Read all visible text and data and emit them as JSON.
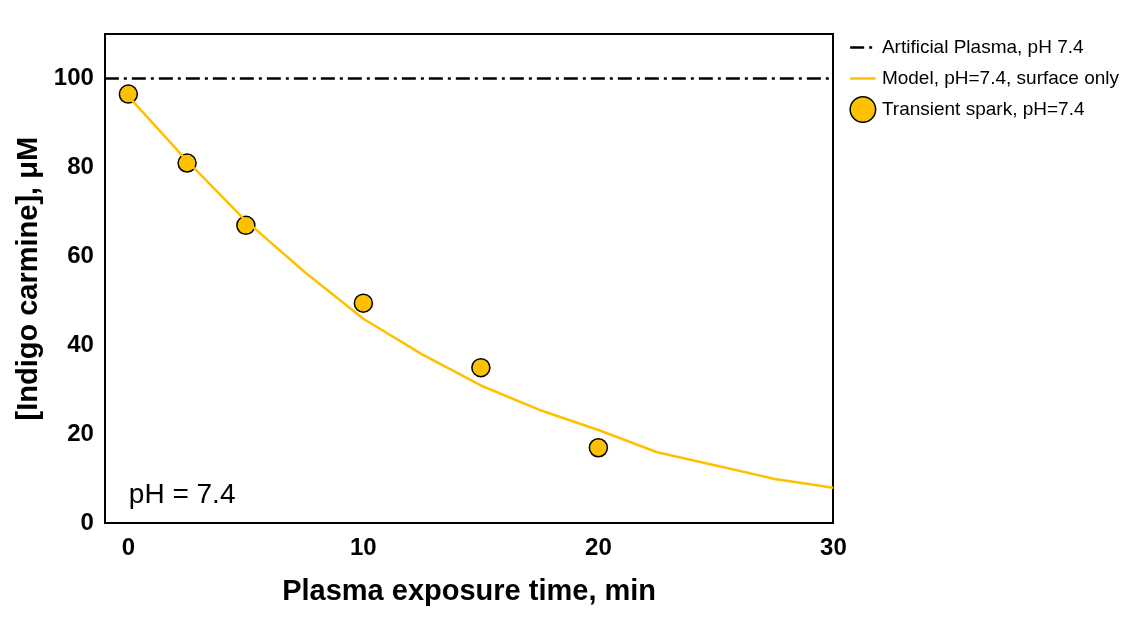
{
  "chart_data": {
    "type": "line",
    "xlabel": "Plasma exposure time, min",
    "ylabel": "[Indigo carmine], μM",
    "xlim": [
      -1,
      30
    ],
    "xticks": [
      0,
      10,
      20,
      30
    ],
    "ylim": [
      0,
      110
    ],
    "yticks": [
      0,
      20,
      40,
      60,
      80,
      100
    ],
    "grid": false,
    "legend": "right",
    "series": [
      {
        "name": "Artificial Plasma, pH 7.4",
        "type": "line",
        "color": "#000000",
        "line_style": "dashed",
        "marker": "none",
        "x": [
          -1,
          30
        ],
        "values": [
          100,
          100
        ]
      },
      {
        "name": "Model, pH=7.4, surface only",
        "type": "line",
        "color": "#ffc000",
        "line_style": "solid",
        "marker": "none",
        "x": [
          0,
          2.5,
          5,
          7.5,
          10,
          12.5,
          15,
          17.5,
          20,
          22.5,
          25,
          27.5,
          30
        ],
        "values": [
          96,
          81.5,
          68,
          56.5,
          46,
          38,
          31,
          25.5,
          21,
          16,
          13,
          10,
          8
        ]
      },
      {
        "name": "Transient spark, pH=7.4",
        "type": "scatter",
        "color": "#ffc000",
        "marker": "circle",
        "x": [
          0,
          2.5,
          5,
          10,
          15,
          20
        ],
        "values": [
          96.5,
          81,
          67,
          49.5,
          35,
          17
        ]
      }
    ],
    "annotations": [
      "pH = 7.4"
    ]
  }
}
